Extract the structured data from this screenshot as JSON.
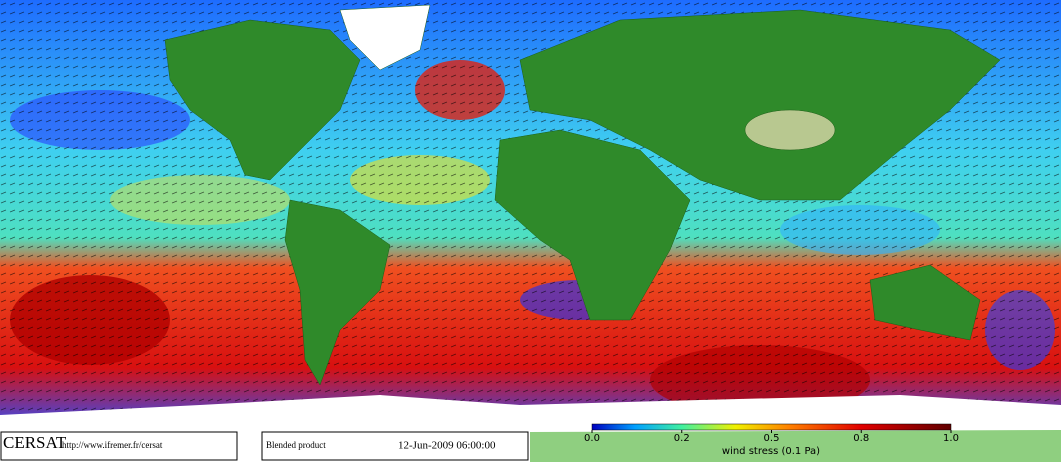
{
  "footer": {
    "logo": "CERSAT",
    "url": "http://www.ifremer.fr/cersat",
    "product": "Blended product",
    "date": "12-Jun-2009 06:00:00"
  },
  "colorbar": {
    "ticks": [
      {
        "value": 0,
        "label": "0.0"
      },
      0.2,
      0.5,
      0.8,
      {
        "value": 1,
        "label": "1.0"
      }
    ],
    "label": "wind stress (0.1 Pa)"
  }
}
